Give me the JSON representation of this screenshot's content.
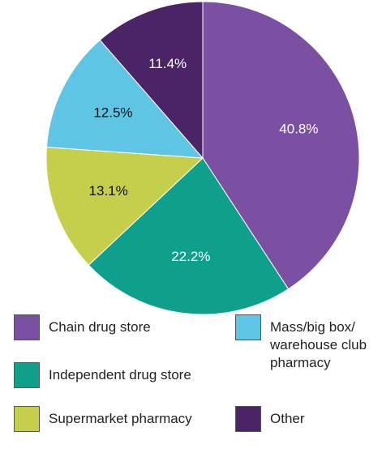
{
  "chart_data": {
    "type": "pie",
    "categories": [
      "Chain drug store",
      "Independent drug store",
      "Supermarket pharmacy",
      "Mass/big box/ warehouse club pharmacy",
      "Other"
    ],
    "values": [
      40.8,
      22.2,
      13.1,
      12.5,
      11.4
    ],
    "value_labels": [
      "40.8%",
      "22.2%",
      "13.1%",
      "12.5%",
      "11.4%"
    ],
    "colors": [
      "#7b4fa2",
      "#0fa08c",
      "#c6cf4c",
      "#5ec6e4",
      "#4a2466"
    ]
  }
}
